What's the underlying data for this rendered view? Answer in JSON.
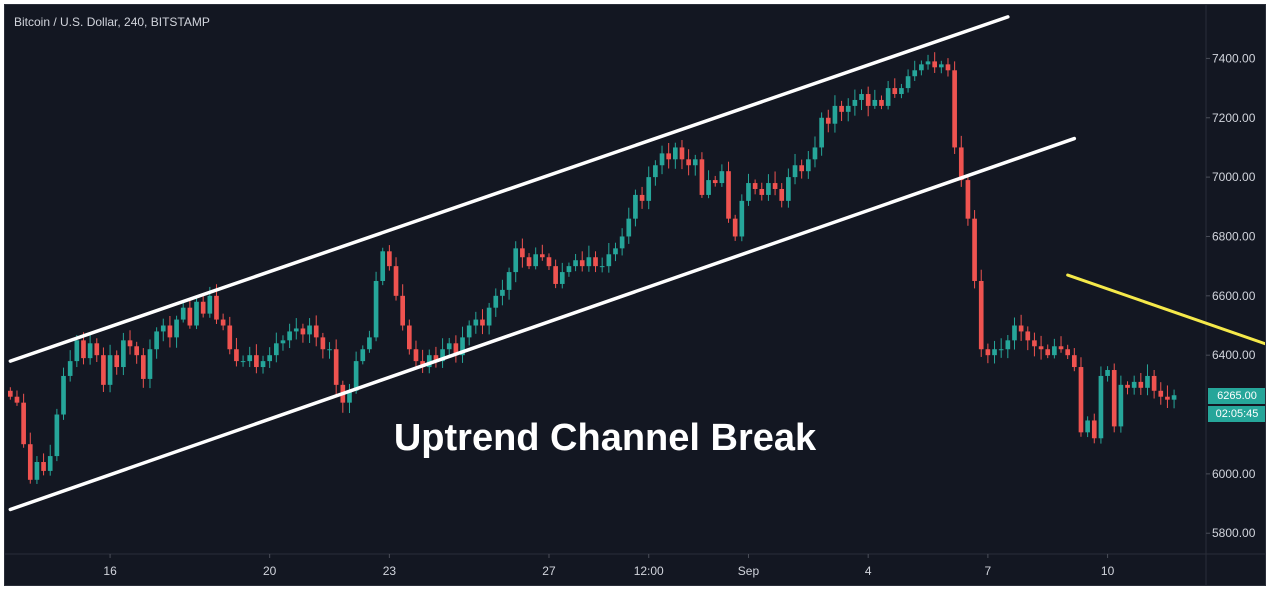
{
  "header": {
    "symbol_title": "Bitcoin / U.S. Dollar, 240, BITSTAMP"
  },
  "annotation": {
    "caption": "Uptrend Channel Break"
  },
  "price_tags": {
    "last_price": "6265.00",
    "countdown": "02:05:45"
  },
  "colors": {
    "background": "#131722",
    "up_candle": "#26a69a",
    "down_candle": "#ef5350",
    "channel_lines": "#ffffff",
    "arrow": "#f5e94a",
    "axis_text": "#d1d4dc",
    "tag_background": "#26a69a"
  },
  "chart_data": {
    "type": "candlestick",
    "title": "Bitcoin / U.S. Dollar, 240, BITSTAMP",
    "timeframe": "240",
    "exchange": "BITSTAMP",
    "y_ticks": [
      7400,
      7200,
      7000,
      6800,
      6600,
      6400,
      6000,
      5800
    ],
    "y_tick_labels": [
      "7400.00",
      "7200.00",
      "7000.00",
      "6800.00",
      "6600.00",
      "6400.00",
      "6000.00",
      "5800.00"
    ],
    "ylim": [
      5730,
      7580
    ],
    "x_tick_labels": [
      {
        "label": "16",
        "bar": 15
      },
      {
        "label": "20",
        "bar": 39
      },
      {
        "label": "23",
        "bar": 57
      },
      {
        "label": "27",
        "bar": 81
      },
      {
        "label": "12:00",
        "bar": 96
      },
      {
        "label": "Sep",
        "bar": 111
      },
      {
        "label": "4",
        "bar": 129
      },
      {
        "label": "7",
        "bar": 147
      },
      {
        "label": "10",
        "bar": 165
      }
    ],
    "grid": false,
    "bars": 180,
    "closes": [
      6260,
      6240,
      6100,
      5980,
      6040,
      6010,
      6060,
      6200,
      6330,
      6380,
      6450,
      6390,
      6440,
      6400,
      6300,
      6400,
      6360,
      6450,
      6430,
      6400,
      6320,
      6420,
      6480,
      6500,
      6460,
      6520,
      6560,
      6500,
      6580,
      6540,
      6600,
      6520,
      6500,
      6420,
      6380,
      6380,
      6400,
      6360,
      6380,
      6400,
      6440,
      6450,
      6480,
      6490,
      6470,
      6500,
      6460,
      6420,
      6420,
      6300,
      6240,
      6280,
      6380,
      6420,
      6460,
      6650,
      6750,
      6700,
      6600,
      6500,
      6420,
      6380,
      6360,
      6400,
      6380,
      6420,
      6440,
      6400,
      6460,
      6500,
      6520,
      6500,
      6560,
      6600,
      6620,
      6680,
      6760,
      6730,
      6700,
      6740,
      6730,
      6700,
      6640,
      6680,
      6700,
      6720,
      6700,
      6730,
      6700,
      6700,
      6740,
      6760,
      6800,
      6860,
      6940,
      6920,
      7000,
      7040,
      7080,
      7060,
      7100,
      7060,
      7040,
      7060,
      6940,
      6990,
      6980,
      7020,
      6860,
      6800,
      6920,
      6980,
      6960,
      6940,
      6980,
      6960,
      6920,
      7000,
      7040,
      7020,
      7060,
      7100,
      7200,
      7180,
      7240,
      7220,
      7240,
      7260,
      7280,
      7240,
      7260,
      7240,
      7300,
      7280,
      7300,
      7340,
      7360,
      7380,
      7390,
      7370,
      7380,
      7360,
      7100,
      6990,
      6860,
      6650,
      6420,
      6400,
      6420,
      6420,
      6450,
      6500,
      6480,
      6450,
      6430,
      6420,
      6400,
      6430,
      6420,
      6400,
      6360,
      6140,
      6180,
      6120,
      6330,
      6350,
      6160,
      6300,
      6290,
      6310,
      6290,
      6330,
      6280,
      6260,
      6250,
      6265
    ],
    "last_price": 6265.0,
    "countdown": "02:05:45",
    "channel": {
      "upper": [
        {
          "bar": 0,
          "price": 6380
        },
        {
          "bar": 150,
          "price": 7540
        }
      ],
      "lower": [
        {
          "bar": 0,
          "price": 5880
        },
        {
          "bar": 160,
          "price": 7130
        }
      ]
    },
    "arrow": {
      "from": {
        "bar": 159,
        "price": 6670
      },
      "to": {
        "bar": 193,
        "price": 6405
      }
    },
    "annotation_text": "Uptrend Channel Break"
  }
}
